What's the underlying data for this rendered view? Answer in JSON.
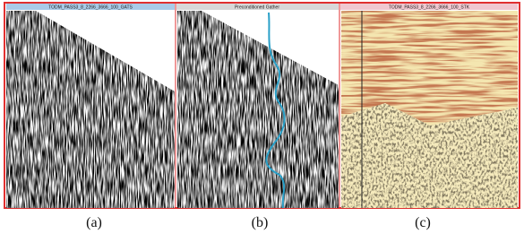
{
  "panels": [
    {
      "title": "TODM_PASS3_8_2266_3666_100_GATS",
      "caption": "(a)"
    },
    {
      "title": "Preconditioned Gather",
      "caption": "(b)"
    },
    {
      "title": "TODM_PASS3_8_2266_3666_100_STK",
      "caption": "(c)"
    }
  ]
}
